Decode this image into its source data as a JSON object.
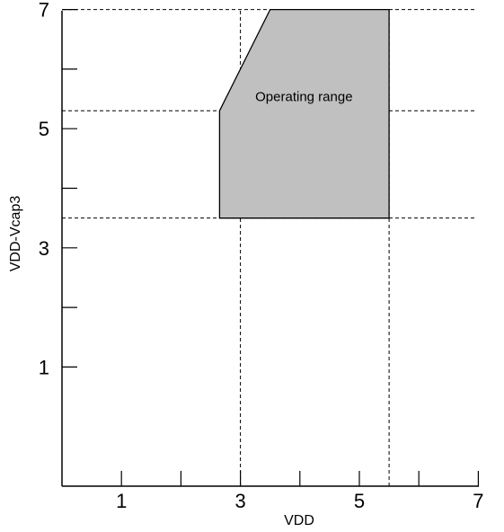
{
  "chart_data": {
    "type": "area",
    "xlabel": "VDD",
    "ylabel": "VDD-Vcap3",
    "xlim": [
      0,
      7.5
    ],
    "ylim": [
      -1,
      8
    ],
    "x_ticks": [
      1,
      2,
      3,
      4,
      5,
      6,
      7
    ],
    "x_tick_labels": [
      "1",
      "",
      "3",
      "",
      "5",
      "",
      "7"
    ],
    "y_ticks": [
      1,
      2,
      3,
      4,
      5,
      6,
      7
    ],
    "y_tick_labels": [
      "1",
      "",
      "3",
      "",
      "5",
      "",
      "7"
    ],
    "reference_lines": {
      "vertical": [
        3.0,
        5.5
      ],
      "horizontal": [
        3.5,
        5.3,
        7.0
      ]
    },
    "region": {
      "label": "Operating range",
      "vertices": [
        {
          "x": 2.65,
          "y": 3.5
        },
        {
          "x": 2.65,
          "y": 5.3
        },
        {
          "x": 3.5,
          "y": 7.0
        },
        {
          "x": 5.5,
          "y": 7.0
        },
        {
          "x": 5.5,
          "y": 3.5
        }
      ]
    },
    "grid": false
  },
  "colors": {
    "region_fill": "#c0c0c0",
    "line": "#000000",
    "background": "#ffffff"
  }
}
